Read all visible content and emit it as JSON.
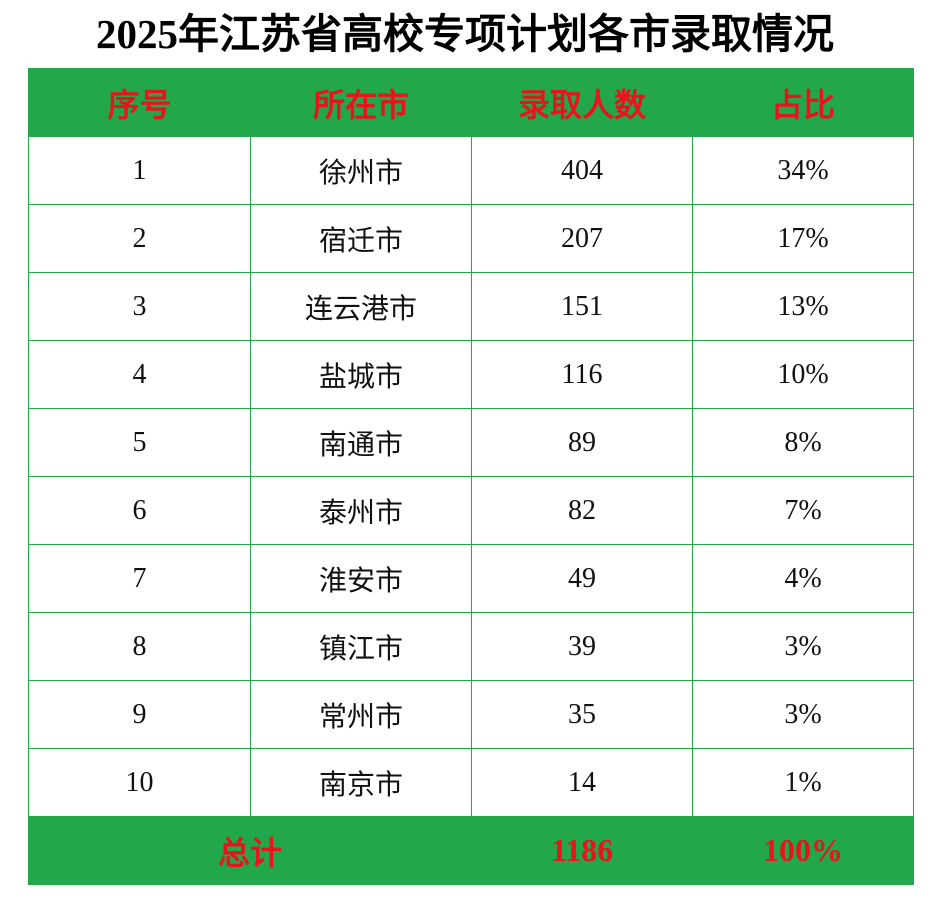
{
  "title": "2025年江苏省高校专项计划各市录取情况",
  "table": {
    "header": [
      "序号",
      "所在市",
      "录取人数",
      "占比"
    ],
    "rows": [
      [
        "1",
        "徐州市",
        "404",
        "34%"
      ],
      [
        "2",
        "宿迁市",
        "207",
        "17%"
      ],
      [
        "3",
        "连云港市",
        "151",
        "13%"
      ],
      [
        "4",
        "盐城市",
        "116",
        "10%"
      ],
      [
        "5",
        "南通市",
        "89",
        "8%"
      ],
      [
        "6",
        "泰州市",
        "82",
        "7%"
      ],
      [
        "7",
        "淮安市",
        "49",
        "4%"
      ],
      [
        "8",
        "镇江市",
        "39",
        "3%"
      ],
      [
        "9",
        "常州市",
        "35",
        "3%"
      ],
      [
        "10",
        "南京市",
        "14",
        "1%"
      ]
    ],
    "footer": [
      "总计",
      "1186",
      "100%"
    ]
  }
}
